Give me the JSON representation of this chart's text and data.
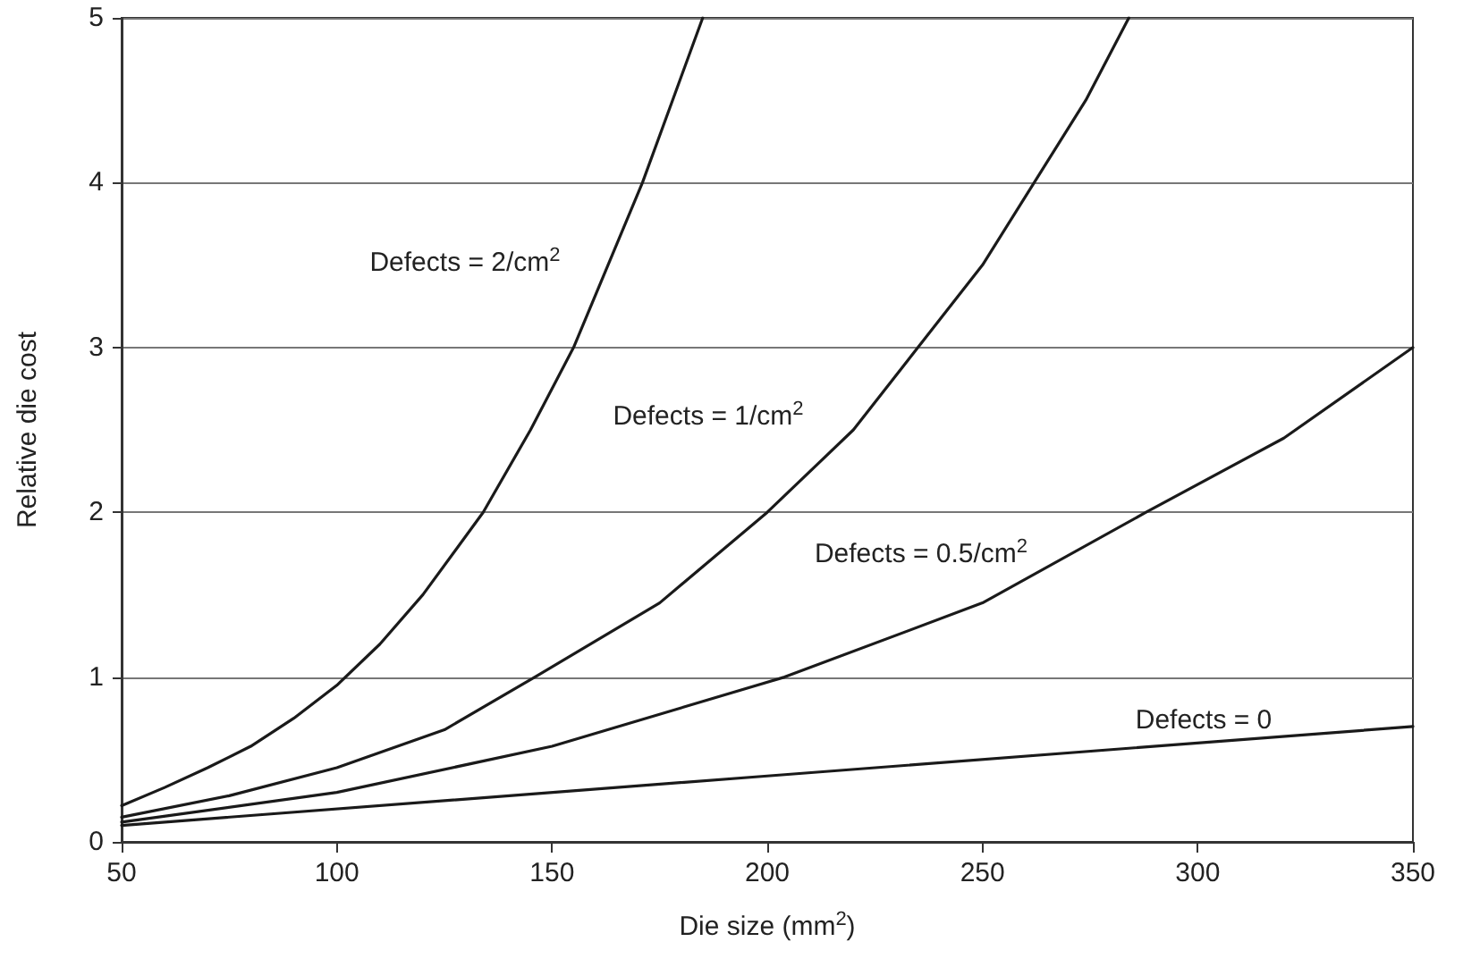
{
  "chart_data": {
    "type": "line",
    "xlabel": "Die size (mm$^{2}$)",
    "ylabel": "Relative die cost",
    "xlim": [
      50,
      350
    ],
    "xticks": [
      50,
      100,
      150,
      200,
      250,
      300,
      350
    ],
    "ylim": [
      0,
      5
    ],
    "yticks": [
      0,
      1,
      2,
      3,
      4,
      5
    ],
    "grid": "y",
    "marker": "none",
    "line_style": "solid",
    "series": [
      {
        "name": "Defects = 2/cm$^{2}$",
        "color": "#1a1a1a",
        "x": [
          50,
          60,
          70,
          80,
          90,
          100,
          110,
          120,
          134,
          145,
          155,
          163,
          171,
          178,
          185
        ],
        "values": [
          0.22,
          0.33,
          0.45,
          0.58,
          0.75,
          0.95,
          1.2,
          1.5,
          2.0,
          2.5,
          3.0,
          3.5,
          4.0,
          4.5,
          5.0
        ]
      },
      {
        "name": "Defects = 1/cm$^{2}$",
        "color": "#1a1a1a",
        "x": [
          50,
          75,
          100,
          125,
          146,
          175,
          200,
          220,
          235,
          250,
          262,
          274,
          284
        ],
        "values": [
          0.15,
          0.28,
          0.45,
          0.68,
          1.0,
          1.45,
          2.0,
          2.5,
          3.0,
          3.5,
          4.0,
          4.5,
          5.0
        ]
      },
      {
        "name": "Defects = 0.5/cm$^{2}$",
        "color": "#1a1a1a",
        "x": [
          50,
          100,
          150,
          204,
          250,
          288,
          320,
          350
        ],
        "values": [
          0.12,
          0.3,
          0.58,
          1.0,
          1.45,
          2.0,
          2.45,
          3.0
        ]
      },
      {
        "name": "Defects = 0",
        "color": "#1a1a1a",
        "x": [
          50,
          200,
          350
        ],
        "values": [
          0.1,
          0.4,
          0.7
        ]
      }
    ]
  }
}
